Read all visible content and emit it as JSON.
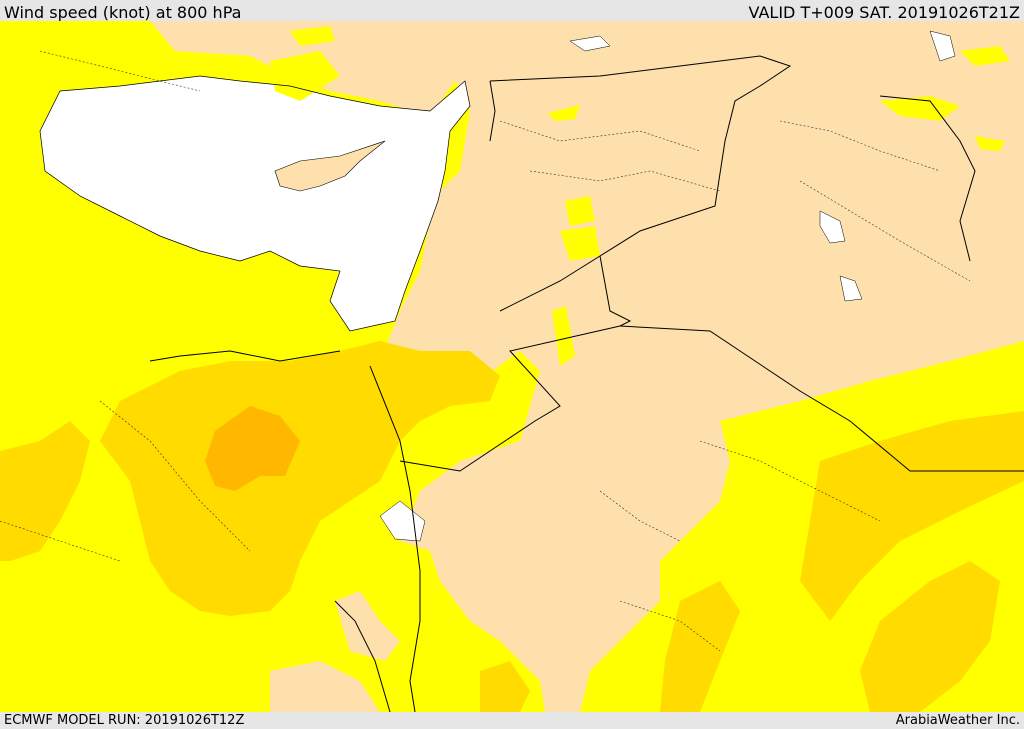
{
  "header": {
    "title": "Wind speed (knot) at 800 hPa",
    "valid": "VALID T+009 SAT. 20191026T21Z"
  },
  "footer": {
    "model_run": "ECMWF MODEL RUN: 20191026T12Z",
    "credit": "ArabiaWeather Inc."
  },
  "map": {
    "colors": {
      "calm_land": "#fde0ac",
      "sea_calm": "#ffffff",
      "band_yellow": "#ffff00",
      "band_gold": "#ffdb00",
      "band_orange": "#ffb700",
      "coastline": "#000000",
      "border": "#000000"
    },
    "variable": "wind_speed",
    "level": "800 hPa",
    "unit": "knot"
  }
}
